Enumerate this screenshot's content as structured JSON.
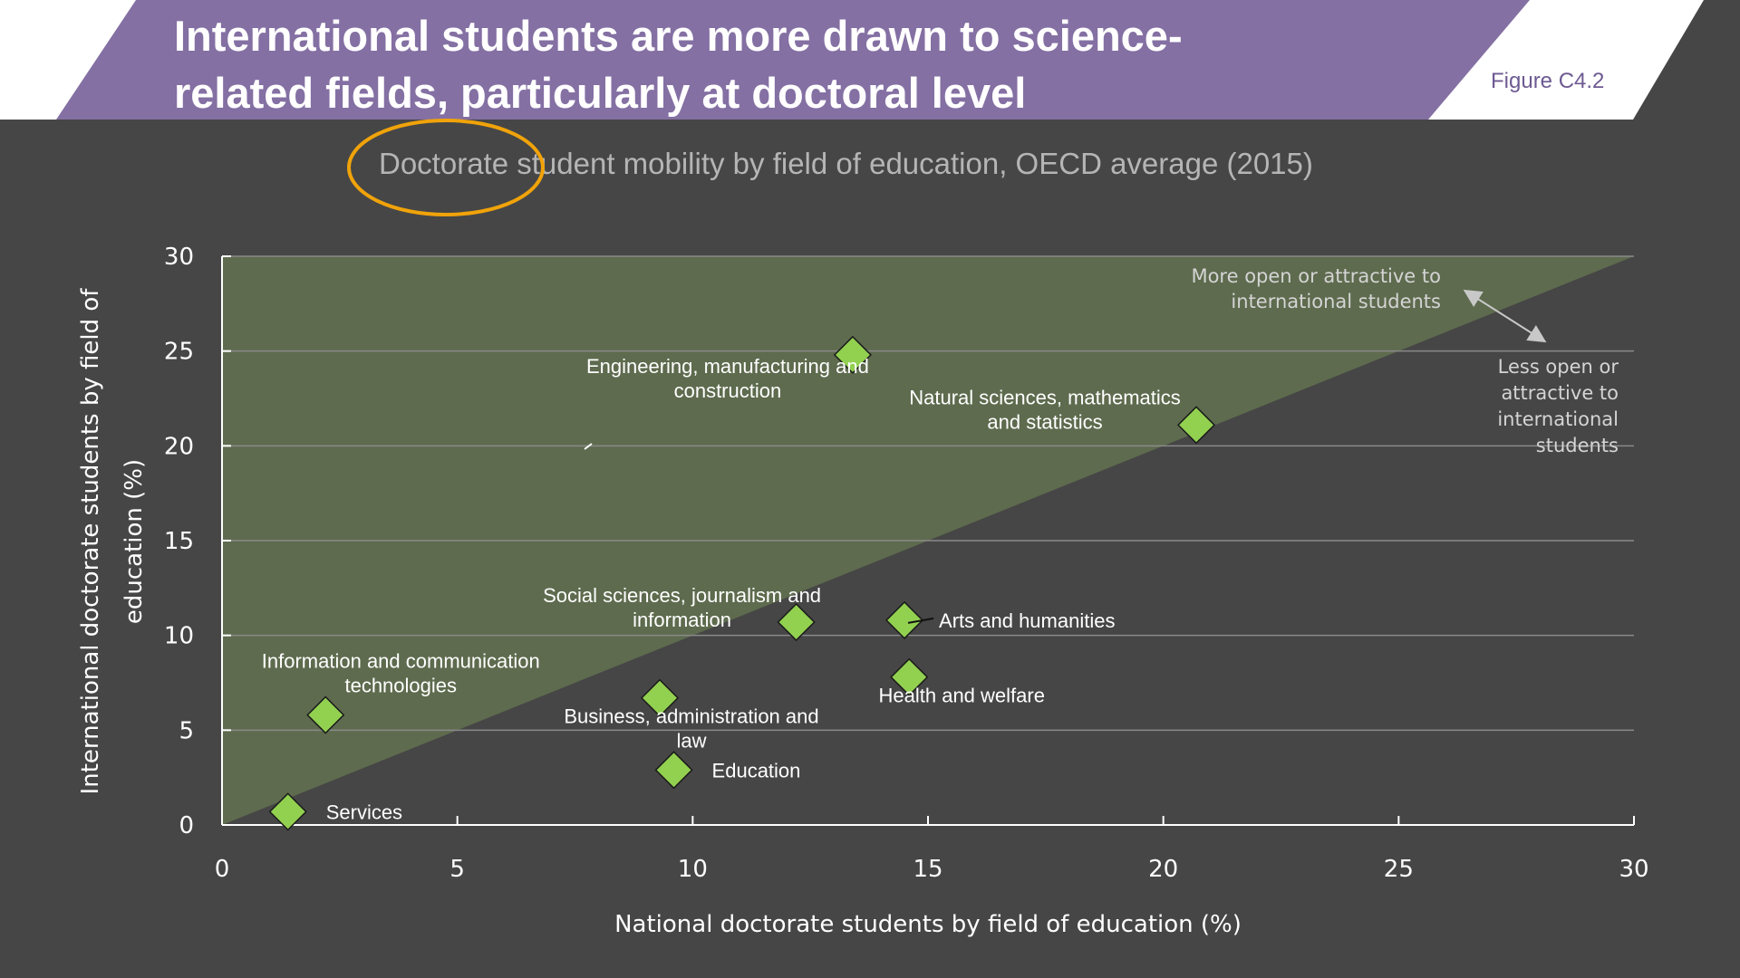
{
  "header": {
    "title_line1": "International students are more drawn to science-",
    "title_line2": "related  fields, particularly at doctoral level",
    "figure_label": "Figure C4.2",
    "band_color": "#8470a3"
  },
  "chart_data": {
    "type": "scatter",
    "title": "Doctorate student mobility by field of education, OECD average (2015)",
    "xlabel": "National doctorate students by field of education (%)",
    "ylabel_line1": "International doctorate students by field of",
    "ylabel_line2": "education (%)",
    "xlim": [
      0,
      30
    ],
    "ylim": [
      0,
      30
    ],
    "xticks": [
      0,
      5,
      10,
      15,
      20,
      25,
      30
    ],
    "yticks": [
      0,
      5,
      10,
      15,
      20,
      25,
      30
    ],
    "grid": "horizontal",
    "marker_color": "#92d050",
    "region_color": "#5e6b4e",
    "highlight_color": "#f0a30a",
    "annotation_above": "More open or attractive to\ninternational students",
    "annotation_below": "Less open or\nattractive to\ninternational\nstudents",
    "points": [
      {
        "label": "Engineering, manufacturing and\nconstruction",
        "x": 13.4,
        "y": 24.8
      },
      {
        "label": "Natural sciences, mathematics\nand statistics",
        "x": 20.7,
        "y": 21.1
      },
      {
        "label": "Social sciences, journalism and\ninformation",
        "x": 12.2,
        "y": 10.7
      },
      {
        "label": "Arts and humanities",
        "x": 14.5,
        "y": 10.8
      },
      {
        "label": "Health and welfare",
        "x": 14.6,
        "y": 7.8
      },
      {
        "label": "Information and communication\ntechnologies",
        "x": 2.2,
        "y": 5.8
      },
      {
        "label": "Business, administration and\nlaw",
        "x": 9.3,
        "y": 6.7
      },
      {
        "label": "Education",
        "x": 9.6,
        "y": 2.9
      },
      {
        "label": "Services",
        "x": 1.4,
        "y": 0.7
      }
    ]
  }
}
